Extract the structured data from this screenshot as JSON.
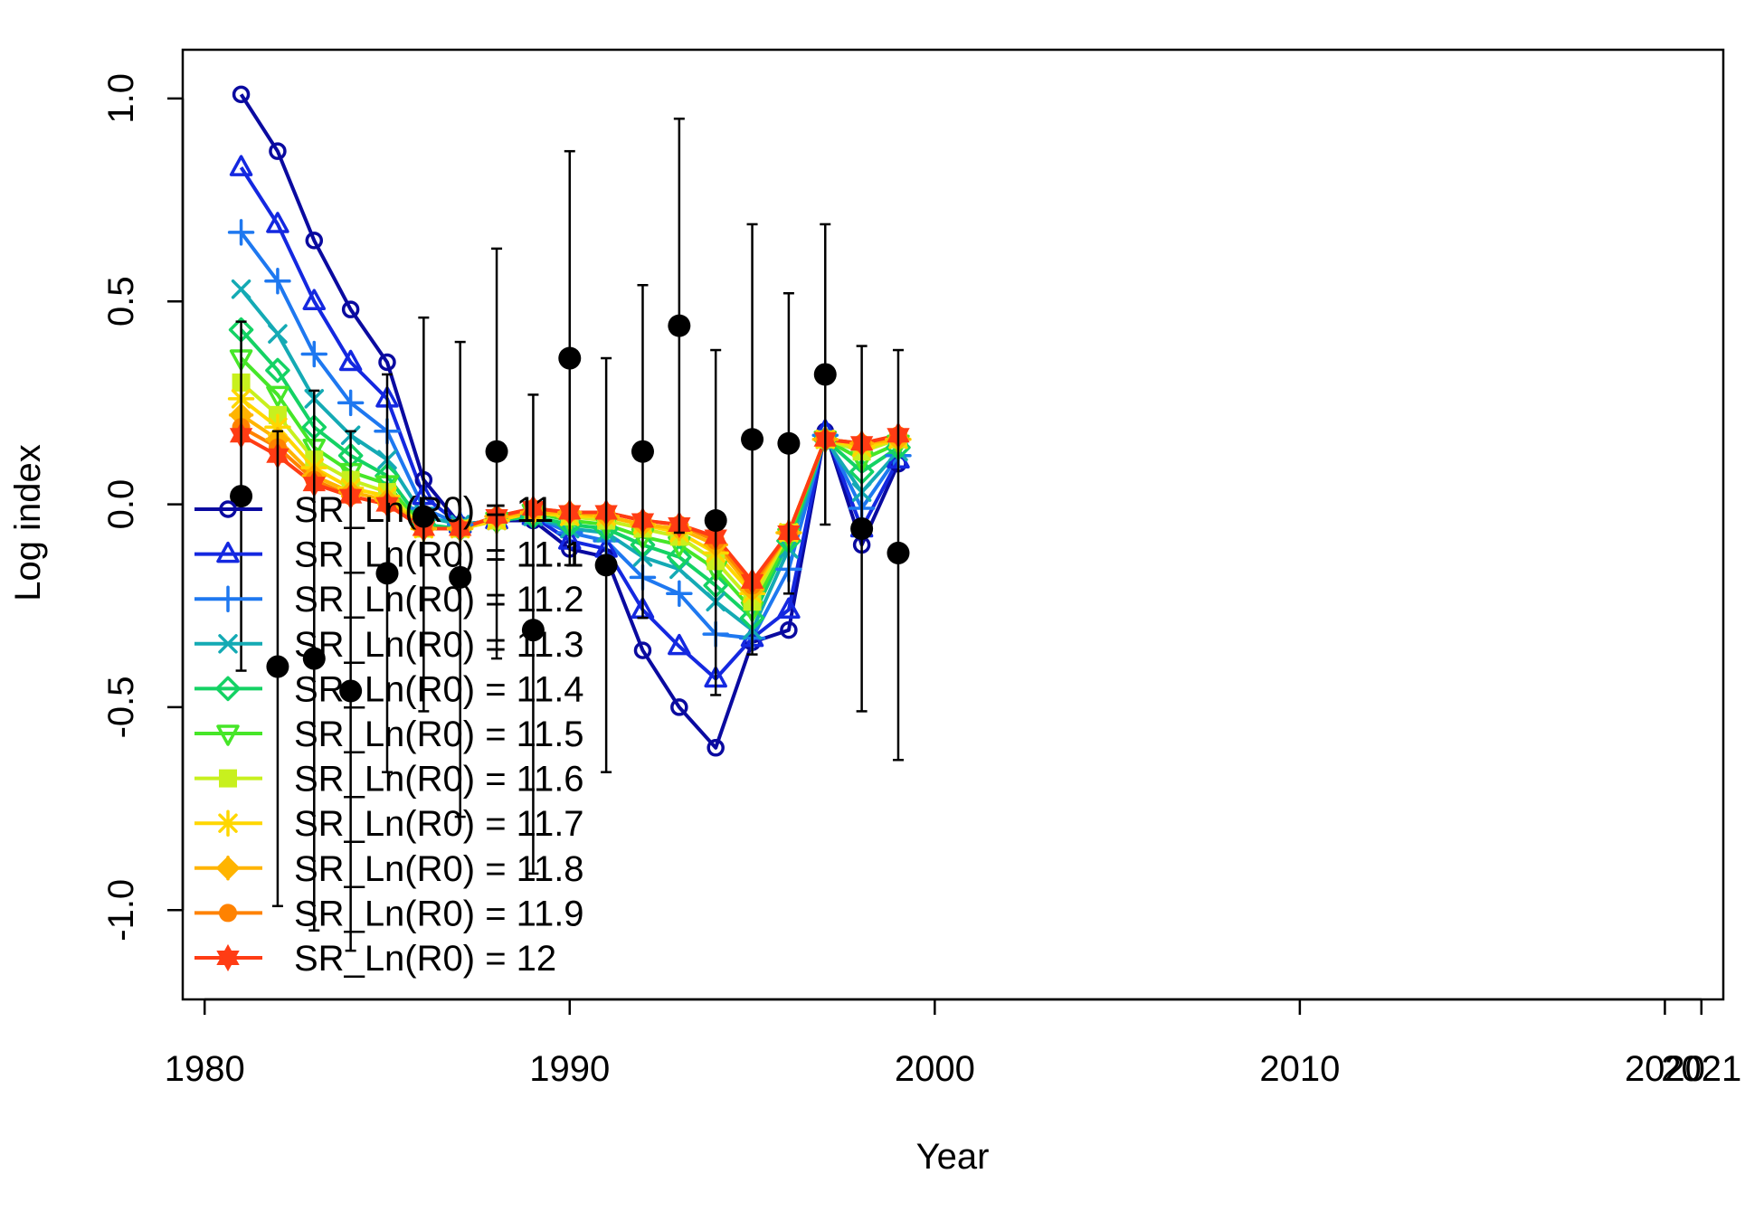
{
  "chart_data": {
    "type": "line",
    "xlabel": "Year",
    "ylabel": "Log index",
    "xlim": [
      1979.4,
      2021.6
    ],
    "ylim": [
      -1.22,
      1.12
    ],
    "x_ticks": [
      {
        "value": 1980,
        "label": "1980"
      },
      {
        "value": 1990,
        "label": "1990"
      },
      {
        "value": 2000,
        "label": "2000"
      },
      {
        "value": 2010,
        "label": "2010"
      },
      {
        "value": 2020,
        "label": "2020"
      },
      {
        "value": 2021,
        "label": "2021"
      }
    ],
    "y_ticks": [
      {
        "value": 1.0,
        "label": "1.0"
      },
      {
        "value": 0.5,
        "label": "0.5"
      },
      {
        "value": 0.0,
        "label": "0.0"
      },
      {
        "value": -0.5,
        "label": "-0.5"
      },
      {
        "value": -1.0,
        "label": "-1.0"
      }
    ],
    "legend_position": "left",
    "x": [
      1981,
      1982,
      1983,
      1984,
      1985,
      1986,
      1987,
      1988,
      1989,
      1990,
      1991,
      1992,
      1993,
      1994,
      1995,
      1996,
      1997,
      1998,
      1999
    ],
    "observed": {
      "y": [
        0.02,
        -0.4,
        -0.38,
        -0.46,
        -0.17,
        -0.03,
        -0.18,
        0.13,
        -0.31,
        0.36,
        -0.15,
        0.13,
        0.44,
        -0.04,
        0.16,
        0.15,
        0.32,
        -0.06,
        -0.12
      ],
      "lower": [
        -0.41,
        -0.99,
        -1.05,
        -1.1,
        -0.66,
        -0.51,
        -0.77,
        -0.38,
        -0.91,
        -0.15,
        -0.66,
        -0.28,
        -0.07,
        -0.47,
        -0.37,
        -0.22,
        -0.05,
        -0.51,
        -0.63
      ],
      "upper": [
        0.45,
        0.18,
        0.28,
        0.18,
        0.32,
        0.46,
        0.4,
        0.63,
        0.27,
        0.87,
        0.36,
        0.54,
        0.95,
        0.38,
        0.69,
        0.52,
        0.69,
        0.39,
        0.38
      ]
    },
    "series": [
      {
        "name": "SR_Ln(R0) = 11",
        "color": "#0a0aa0",
        "marker": "circle",
        "values": [
          1.01,
          0.87,
          0.65,
          0.48,
          0.35,
          0.06,
          -0.05,
          -0.04,
          -0.04,
          -0.11,
          -0.13,
          -0.36,
          -0.5,
          -0.6,
          -0.34,
          -0.31,
          0.18,
          -0.1,
          0.1
        ]
      },
      {
        "name": "SR_Ln(R0) = 11.1",
        "color": "#1428e0",
        "marker": "triangle",
        "values": [
          0.83,
          0.69,
          0.5,
          0.35,
          0.26,
          0.02,
          -0.05,
          -0.04,
          -0.03,
          -0.09,
          -0.11,
          -0.26,
          -0.35,
          -0.43,
          -0.33,
          -0.26,
          0.18,
          -0.06,
          0.11
        ]
      },
      {
        "name": "SR_Ln(R0) = 11.2",
        "color": "#1e78f0",
        "marker": "plus",
        "values": [
          0.67,
          0.55,
          0.37,
          0.25,
          0.18,
          -0.01,
          -0.05,
          -0.04,
          -0.03,
          -0.07,
          -0.09,
          -0.18,
          -0.22,
          -0.32,
          -0.33,
          -0.16,
          0.17,
          -0.01,
          0.12
        ]
      },
      {
        "name": "SR_Ln(R0) = 11.3",
        "color": "#14aab4",
        "marker": "x",
        "values": [
          0.53,
          0.42,
          0.26,
          0.17,
          0.11,
          -0.03,
          -0.05,
          -0.04,
          -0.03,
          -0.06,
          -0.07,
          -0.13,
          -0.16,
          -0.24,
          -0.31,
          -0.11,
          0.16,
          0.03,
          0.13
        ]
      },
      {
        "name": "SR_Ln(R0) = 11.4",
        "color": "#14d264",
        "marker": "diamond",
        "values": [
          0.43,
          0.33,
          0.19,
          0.12,
          0.07,
          -0.05,
          -0.06,
          -0.04,
          -0.03,
          -0.05,
          -0.06,
          -0.1,
          -0.13,
          -0.2,
          -0.28,
          -0.09,
          0.16,
          0.08,
          0.14
        ]
      },
      {
        "name": "SR_Ln(R0) = 11.5",
        "color": "#46e628",
        "marker": "triangle-down",
        "values": [
          0.36,
          0.27,
          0.14,
          0.08,
          0.05,
          -0.06,
          -0.06,
          -0.04,
          -0.02,
          -0.04,
          -0.05,
          -0.08,
          -0.1,
          -0.16,
          -0.26,
          -0.08,
          0.16,
          0.11,
          0.15
        ]
      },
      {
        "name": "SR_Ln(R0) = 11.6",
        "color": "#c8f01e",
        "marker": "square",
        "values": [
          0.3,
          0.22,
          0.11,
          0.06,
          0.03,
          -0.06,
          -0.06,
          -0.04,
          -0.02,
          -0.03,
          -0.04,
          -0.06,
          -0.08,
          -0.14,
          -0.24,
          -0.07,
          0.16,
          0.13,
          0.16
        ]
      },
      {
        "name": "SR_Ln(R0) = 11.7",
        "color": "#ffd700",
        "marker": "asterisk",
        "values": [
          0.26,
          0.19,
          0.09,
          0.04,
          0.02,
          -0.06,
          -0.06,
          -0.04,
          -0.02,
          -0.03,
          -0.03,
          -0.05,
          -0.07,
          -0.12,
          -0.22,
          -0.07,
          0.16,
          0.14,
          0.16
        ]
      },
      {
        "name": "SR_Ln(R0) = 11.8",
        "color": "#ffb400",
        "marker": "diamond-plus",
        "values": [
          0.22,
          0.16,
          0.07,
          0.03,
          0.01,
          -0.06,
          -0.06,
          -0.03,
          -0.02,
          -0.02,
          -0.03,
          -0.05,
          -0.06,
          -0.1,
          -0.21,
          -0.07,
          0.16,
          0.15,
          0.16
        ]
      },
      {
        "name": "SR_Ln(R0) = 11.9",
        "color": "#ff8200",
        "marker": "filled-circle",
        "values": [
          0.19,
          0.14,
          0.06,
          0.02,
          0.0,
          -0.06,
          -0.06,
          -0.03,
          -0.01,
          -0.02,
          -0.02,
          -0.04,
          -0.05,
          -0.09,
          -0.2,
          -0.07,
          0.16,
          0.15,
          0.17
        ]
      },
      {
        "name": "SR_Ln(R0) = 12",
        "color": "#ff3c14",
        "marker": "star",
        "values": [
          0.17,
          0.12,
          0.05,
          0.02,
          0.0,
          -0.06,
          -0.06,
          -0.03,
          -0.01,
          -0.02,
          -0.02,
          -0.04,
          -0.05,
          -0.08,
          -0.19,
          -0.07,
          0.16,
          0.15,
          0.17
        ]
      }
    ]
  }
}
